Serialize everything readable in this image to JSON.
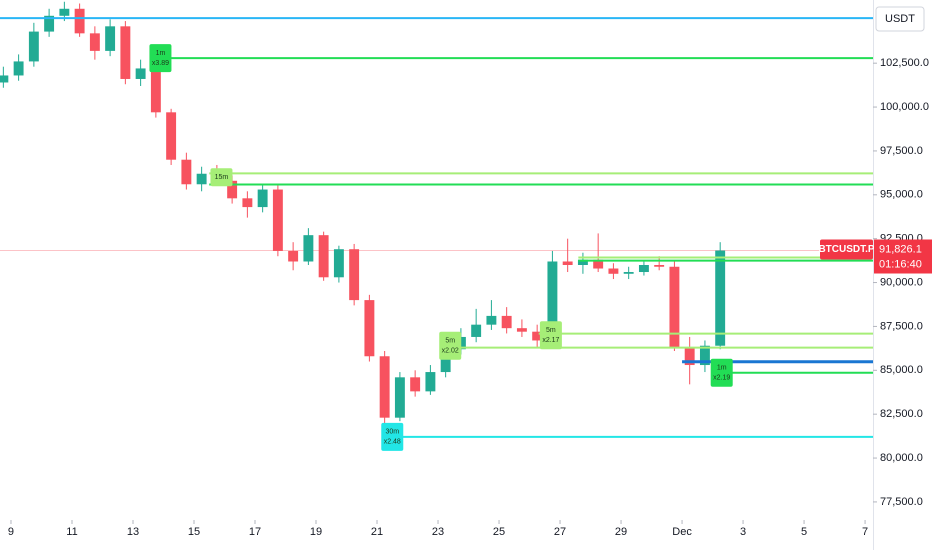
{
  "chart_data": {
    "type": "candlestick",
    "currency": "USDT",
    "symbol": "BTCUSDT.P",
    "price_tag": {
      "value": 91826.1,
      "label": "91,826.1"
    },
    "countdown": "01:16:40",
    "xlim": [
      -0.36,
      28.26
    ],
    "ylim": [
      76470,
      106100
    ],
    "xticks": [
      {
        "value": 0,
        "label": "9"
      },
      {
        "value": 2,
        "label": "11"
      },
      {
        "value": 4,
        "label": "13"
      },
      {
        "value": 6,
        "label": "15"
      },
      {
        "value": 8,
        "label": "17"
      },
      {
        "value": 10,
        "label": "19"
      },
      {
        "value": 12,
        "label": "21"
      },
      {
        "value": 14,
        "label": "23"
      },
      {
        "value": 16,
        "label": "25"
      },
      {
        "value": 18,
        "label": "27"
      },
      {
        "value": 20,
        "label": "29"
      },
      {
        "value": 22,
        "label": "Dec"
      },
      {
        "value": 24,
        "label": "3"
      },
      {
        "value": 26,
        "label": "5"
      },
      {
        "value": 28,
        "label": "7"
      }
    ],
    "yticks": [
      {
        "value": 77500,
        "label": "77,500.0"
      },
      {
        "value": 80000,
        "label": "80,000.0"
      },
      {
        "value": 82500,
        "label": "82,500.0"
      },
      {
        "value": 85000,
        "label": "85,000.0"
      },
      {
        "value": 87500,
        "label": "87,500.0"
      },
      {
        "value": 90000,
        "label": "90,000.0"
      },
      {
        "value": 92500,
        "label": "92,500.0"
      },
      {
        "value": 95000,
        "label": "95,000.0"
      },
      {
        "value": 97500,
        "label": "97,500.0"
      },
      {
        "value": 100000,
        "label": "100,000.0"
      },
      {
        "value": 102500,
        "label": "102,500.0"
      }
    ],
    "up_color": "#22ab94",
    "down_color": "#f7525f",
    "x": [
      -0.25,
      0.25,
      0.75,
      1.25,
      1.75,
      2.25,
      2.75,
      3.25,
      3.75,
      4.25,
      4.75,
      5.25,
      5.75,
      6.25,
      6.75,
      7.25,
      7.75,
      8.25,
      8.75,
      9.25,
      9.75,
      10.25,
      10.75,
      11.25,
      11.75,
      12.25,
      12.75,
      13.25,
      13.75,
      14.25,
      14.75,
      15.25,
      15.75,
      16.25,
      16.75,
      17.25,
      17.75,
      18.25,
      18.75,
      19.25,
      19.75,
      20.25,
      20.75,
      21.25,
      21.75,
      22.25,
      22.75,
      23.25
    ],
    "open": [
      101400,
      101800,
      102600,
      104300,
      105200,
      105600,
      104200,
      103200,
      104600,
      101600,
      102200,
      99700,
      97000,
      95600,
      96200,
      95800,
      94800,
      94300,
      95300,
      91800,
      91200,
      92700,
      90300,
      91900,
      89000,
      85800,
      82300,
      84600,
      83800,
      84900,
      86200,
      86900,
      87600,
      88100,
      87400,
      87200,
      86700,
      91200,
      91000,
      91300,
      90800,
      90500,
      90600,
      91000,
      90900,
      86300,
      85300,
      86400
    ],
    "high": [
      102300,
      103000,
      104800,
      105600,
      106000,
      105900,
      104600,
      105000,
      104900,
      102700,
      102500,
      99900,
      97400,
      96600,
      96700,
      96100,
      95200,
      95600,
      95600,
      92300,
      93100,
      92900,
      92100,
      92200,
      89300,
      86100,
      84900,
      85000,
      85300,
      86500,
      87400,
      88500,
      89000,
      88600,
      87900,
      87600,
      91800,
      92500,
      91700,
      92800,
      91100,
      90900,
      91200,
      91500,
      91200,
      86900,
      86700,
      92300
    ],
    "low": [
      101100,
      101500,
      102300,
      104000,
      104900,
      104000,
      102700,
      102900,
      101300,
      101200,
      99400,
      96700,
      95300,
      95200,
      95500,
      94500,
      93700,
      94000,
      91500,
      90700,
      91000,
      90100,
      90000,
      88700,
      85500,
      81800,
      82100,
      83500,
      83600,
      84600,
      85900,
      86600,
      87300,
      87100,
      86900,
      86300,
      86500,
      90600,
      90500,
      90600,
      90200,
      90200,
      90400,
      90700,
      86100,
      84200,
      84900,
      86200
    ],
    "close": [
      101800,
      102600,
      104300,
      105200,
      105600,
      104200,
      103200,
      104600,
      101600,
      102200,
      99700,
      97000,
      95600,
      96200,
      95800,
      94800,
      94300,
      95300,
      91800,
      91200,
      92700,
      90300,
      91900,
      89000,
      85800,
      82300,
      84600,
      83800,
      84900,
      86200,
      86900,
      87600,
      88100,
      87400,
      87200,
      86700,
      91200,
      91000,
      91300,
      90800,
      90500,
      90600,
      91000,
      90900,
      86300,
      85300,
      86400,
      91826.1
    ],
    "levels": [
      {
        "start": -0.36,
        "value": 105070,
        "color": "#29b6f6",
        "width": 2
      },
      {
        "start": 4.6,
        "value": 102785,
        "color": "#22dd55",
        "width": 2
      },
      {
        "start": 6.5,
        "value": 96220,
        "color": "#a6ee77",
        "width": 2
      },
      {
        "start": 6.5,
        "value": 95590,
        "color": "#22dd55",
        "width": 2
      },
      {
        "start": 18.6,
        "value": 91430,
        "color": "#a6ee77",
        "width": 2
      },
      {
        "start": 18.6,
        "value": 91250,
        "color": "#22dd55",
        "width": 2
      },
      {
        "start": 17.3,
        "value": 87090,
        "color": "#a6ee77",
        "width": 2
      },
      {
        "start": 14.2,
        "value": 86290,
        "color": "#a6ee77",
        "width": 2
      },
      {
        "start": 22.0,
        "value": 85490,
        "color": "#1976d2",
        "width": 3
      },
      {
        "start": 23.0,
        "value": 84860,
        "color": "#22dd55",
        "width": 2
      },
      {
        "start": 12.5,
        "value": 81210,
        "color": "#22e6e6",
        "width": 2
      }
    ],
    "labels": [
      {
        "x": 4.9,
        "y": 102785,
        "color": "#22dd55",
        "lines": [
          "1m",
          "x3.89"
        ]
      },
      {
        "x": 6.9,
        "y": 96000,
        "color": "#a6ee77",
        "lines": [
          "15m"
        ]
      },
      {
        "x": 12.5,
        "y": 81210,
        "color": "#22e6e6",
        "lines": [
          "30m",
          "x2.48"
        ]
      },
      {
        "x": 14.4,
        "y": 86400,
        "color": "#a6ee77",
        "lines": [
          "5m",
          "x2.02"
        ]
      },
      {
        "x": 17.7,
        "y": 87000,
        "color": "#a6ee77",
        "lines": [
          "5m",
          "x2.17"
        ]
      },
      {
        "x": 23.3,
        "y": 84860,
        "color": "#22dd55",
        "lines": [
          "1m",
          "x2.19"
        ]
      }
    ]
  }
}
